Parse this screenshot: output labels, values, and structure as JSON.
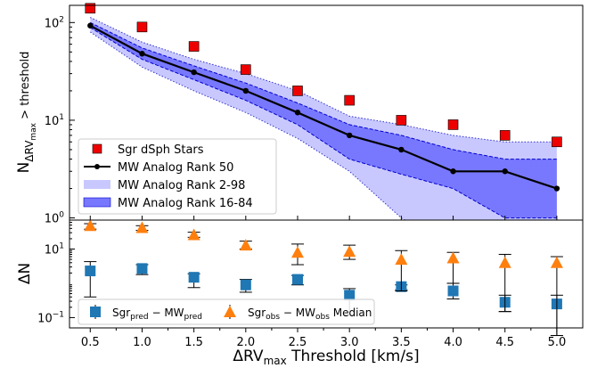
{
  "chart_data": [
    {
      "type": "line",
      "panel": "top",
      "ylabel": "NΔRVmax > threshold",
      "yscale": "log",
      "ylim": [
        0.95,
        150
      ],
      "xlim": [
        0.3,
        5.25
      ],
      "y_ticks": [
        {
          "value": 1,
          "base": "10",
          "exp": "0"
        },
        {
          "value": 10,
          "base": "10",
          "exp": "1"
        },
        {
          "value": 100,
          "base": "10",
          "exp": "2"
        }
      ],
      "x": [
        0.5,
        1.0,
        1.5,
        2.0,
        2.5,
        3.0,
        3.5,
        4.0,
        4.5,
        5.0
      ],
      "series": [
        {
          "name": "Sgr dSph Stars",
          "kind": "markers",
          "color": "#ee0000",
          "values": [
            140,
            90,
            57,
            33,
            20,
            16,
            10,
            9,
            7,
            6
          ]
        },
        {
          "name": "MW Analog Rank 50",
          "kind": "line",
          "color": "#000000",
          "values": [
            93,
            48,
            31,
            20,
            12,
            7,
            5,
            3,
            3,
            2
          ]
        },
        {
          "name": "MW Analog Rank 2-98",
          "kind": "band",
          "color": "#c8c8ff",
          "lower": [
            80,
            35,
            20,
            12,
            6.5,
            3,
            1,
            0.5,
            0.5,
            0.5
          ],
          "upper": [
            113,
            63,
            42,
            30,
            20,
            11,
            9,
            7,
            6,
            6
          ]
        },
        {
          "name": "MW Analog Rank 16-84",
          "kind": "band",
          "color": "#7878ff",
          "lower": [
            89,
            42,
            26,
            16,
            9,
            4,
            2.8,
            2,
            1,
            1
          ],
          "upper": [
            100,
            55,
            36,
            24,
            15,
            9,
            7,
            5,
            4,
            4
          ]
        }
      ],
      "legend": {
        "position": "lower-left"
      }
    },
    {
      "type": "scatter",
      "panel": "bottom",
      "ylabel": "ΔN",
      "xlabel": "ΔRVmax Threshold [km/s]",
      "yscale": "log",
      "ylim": [
        0.05,
        70
      ],
      "xlim": [
        0.3,
        5.25
      ],
      "x_ticks": [
        "0.5",
        "1.0",
        "1.5",
        "2.0",
        "2.5",
        "3.0",
        "3.5",
        "4.0",
        "4.5",
        "5.0"
      ],
      "y_ticks": [
        {
          "value": 0.1,
          "base": "10",
          "exp": "−1"
        },
        {
          "value": 10,
          "base": "10",
          "exp": "1"
        }
      ],
      "x": [
        0.5,
        1.0,
        1.5,
        2.0,
        2.5,
        3.0,
        3.5,
        4.0,
        4.5,
        5.0
      ],
      "series": [
        {
          "name": "Sgr_pred − MW_pred",
          "marker": "square",
          "color": "#1f77b4",
          "values": [
            2.3,
            2.7,
            1.5,
            0.9,
            1.3,
            0.45,
            0.8,
            0.6,
            0.28,
            0.25
          ],
          "err_low": [
            0.4,
            1.8,
            0.75,
            0.55,
            0.9,
            0.12,
            0.65,
            0.35,
            0.15,
            0.03
          ],
          "err_high": [
            4.3,
            3.5,
            1.9,
            1.3,
            1.7,
            0.7,
            0.9,
            1.0,
            0.45,
            0.45
          ]
        },
        {
          "name": "Sgr_obs − MW_obs Median",
          "marker": "triangle",
          "color": "#ff7f0e",
          "values": [
            48,
            42,
            26,
            13,
            8,
            8.5,
            5,
            5.5,
            4,
            4
          ],
          "err_low": [
            38,
            35,
            22,
            10,
            3.5,
            5,
            0.6,
            1,
            0.15,
            0.03
          ],
          "err_high": [
            55,
            48,
            31,
            17,
            14,
            13,
            9,
            8,
            7,
            6
          ]
        }
      ],
      "legend": {
        "position": "lower-left"
      }
    }
  ],
  "legend_top": {
    "sgr": "Sgr dSph Stars",
    "rank50": "MW Analog Rank 50",
    "rank2_98": "MW Analog Rank 2-98",
    "rank16_84": "MW Analog Rank 16-84"
  },
  "legend_bottom": {
    "pred_main": "Sgr",
    "pred_sub1": "pred",
    "pred_mid": " − MW",
    "pred_sub2": "pred",
    "obs_main": "Sgr",
    "obs_sub1": "obs",
    "obs_mid": " − MW",
    "obs_sub2": "obs",
    "obs_tail": " Median"
  },
  "labels": {
    "top_y_main": "N",
    "top_y_sub": "ΔRV",
    "top_y_subsub": "max",
    "top_y_tail": " > threshold",
    "bottom_y": "ΔN",
    "x_main": "ΔRV",
    "x_sub": "max",
    "x_tail": " Threshold [km/s]"
  }
}
